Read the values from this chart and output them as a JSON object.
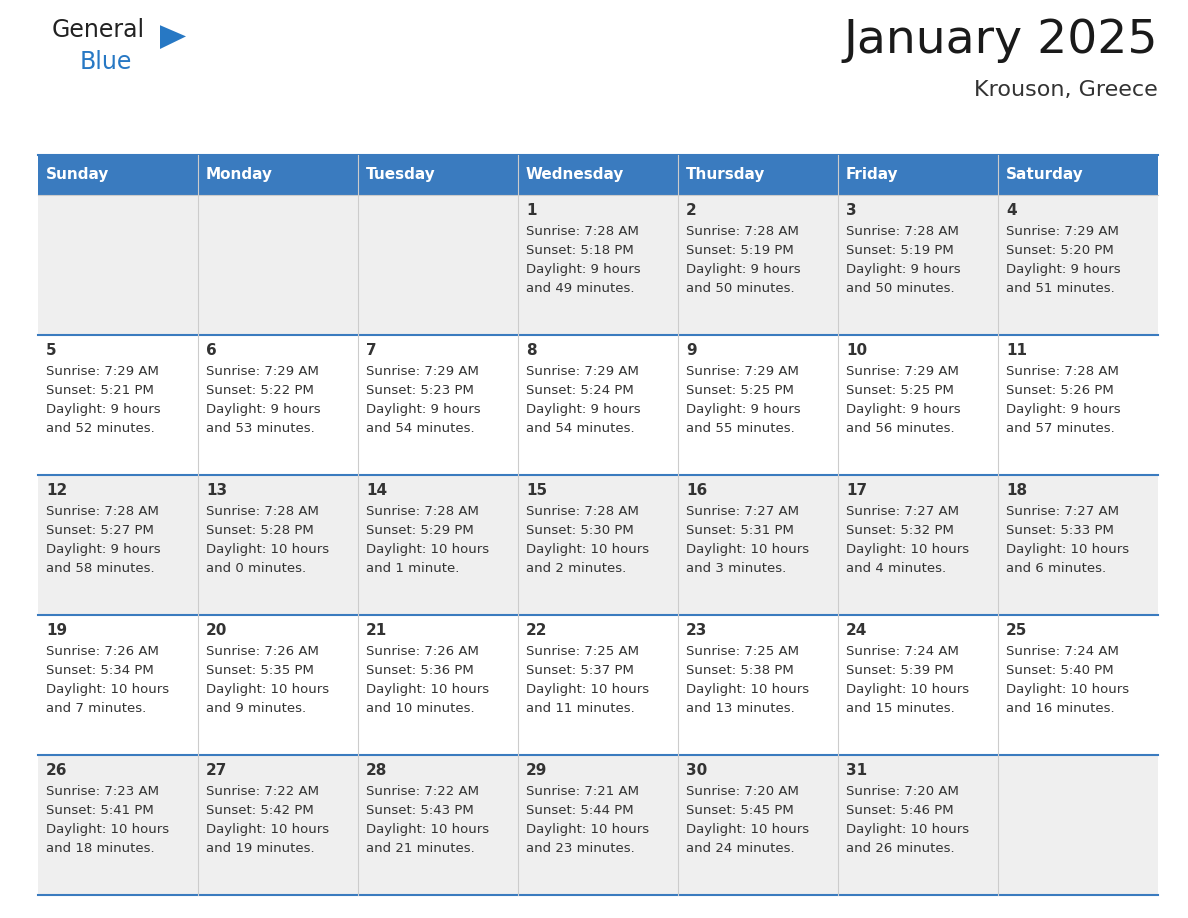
{
  "title": "January 2025",
  "subtitle": "Krouson, Greece",
  "days_of_week": [
    "Sunday",
    "Monday",
    "Tuesday",
    "Wednesday",
    "Thursday",
    "Friday",
    "Saturday"
  ],
  "header_bg_color": "#3A7BBF",
  "header_text_color": "#FFFFFF",
  "cell_bg_even": "#EFEFEF",
  "cell_bg_odd": "#FFFFFF",
  "row_separator_color": "#3A7BBF",
  "col_separator_color": "#CCCCCC",
  "text_color": "#333333",
  "logo_general_color": "#222222",
  "logo_blue_color": "#2778C4",
  "week_rows": [
    [
      {
        "date": "",
        "sunrise": "",
        "sunset": "",
        "daylight": ""
      },
      {
        "date": "",
        "sunrise": "",
        "sunset": "",
        "daylight": ""
      },
      {
        "date": "",
        "sunrise": "",
        "sunset": "",
        "daylight": ""
      },
      {
        "date": "1",
        "sunrise": "7:28 AM",
        "sunset": "5:18 PM",
        "daylight": "9 hours\nand 49 minutes."
      },
      {
        "date": "2",
        "sunrise": "7:28 AM",
        "sunset": "5:19 PM",
        "daylight": "9 hours\nand 50 minutes."
      },
      {
        "date": "3",
        "sunrise": "7:28 AM",
        "sunset": "5:19 PM",
        "daylight": "9 hours\nand 50 minutes."
      },
      {
        "date": "4",
        "sunrise": "7:29 AM",
        "sunset": "5:20 PM",
        "daylight": "9 hours\nand 51 minutes."
      }
    ],
    [
      {
        "date": "5",
        "sunrise": "7:29 AM",
        "sunset": "5:21 PM",
        "daylight": "9 hours\nand 52 minutes."
      },
      {
        "date": "6",
        "sunrise": "7:29 AM",
        "sunset": "5:22 PM",
        "daylight": "9 hours\nand 53 minutes."
      },
      {
        "date": "7",
        "sunrise": "7:29 AM",
        "sunset": "5:23 PM",
        "daylight": "9 hours\nand 54 minutes."
      },
      {
        "date": "8",
        "sunrise": "7:29 AM",
        "sunset": "5:24 PM",
        "daylight": "9 hours\nand 54 minutes."
      },
      {
        "date": "9",
        "sunrise": "7:29 AM",
        "sunset": "5:25 PM",
        "daylight": "9 hours\nand 55 minutes."
      },
      {
        "date": "10",
        "sunrise": "7:29 AM",
        "sunset": "5:25 PM",
        "daylight": "9 hours\nand 56 minutes."
      },
      {
        "date": "11",
        "sunrise": "7:28 AM",
        "sunset": "5:26 PM",
        "daylight": "9 hours\nand 57 minutes."
      }
    ],
    [
      {
        "date": "12",
        "sunrise": "7:28 AM",
        "sunset": "5:27 PM",
        "daylight": "9 hours\nand 58 minutes."
      },
      {
        "date": "13",
        "sunrise": "7:28 AM",
        "sunset": "5:28 PM",
        "daylight": "10 hours\nand 0 minutes."
      },
      {
        "date": "14",
        "sunrise": "7:28 AM",
        "sunset": "5:29 PM",
        "daylight": "10 hours\nand 1 minute."
      },
      {
        "date": "15",
        "sunrise": "7:28 AM",
        "sunset": "5:30 PM",
        "daylight": "10 hours\nand 2 minutes."
      },
      {
        "date": "16",
        "sunrise": "7:27 AM",
        "sunset": "5:31 PM",
        "daylight": "10 hours\nand 3 minutes."
      },
      {
        "date": "17",
        "sunrise": "7:27 AM",
        "sunset": "5:32 PM",
        "daylight": "10 hours\nand 4 minutes."
      },
      {
        "date": "18",
        "sunrise": "7:27 AM",
        "sunset": "5:33 PM",
        "daylight": "10 hours\nand 6 minutes."
      }
    ],
    [
      {
        "date": "19",
        "sunrise": "7:26 AM",
        "sunset": "5:34 PM",
        "daylight": "10 hours\nand 7 minutes."
      },
      {
        "date": "20",
        "sunrise": "7:26 AM",
        "sunset": "5:35 PM",
        "daylight": "10 hours\nand 9 minutes."
      },
      {
        "date": "21",
        "sunrise": "7:26 AM",
        "sunset": "5:36 PM",
        "daylight": "10 hours\nand 10 minutes."
      },
      {
        "date": "22",
        "sunrise": "7:25 AM",
        "sunset": "5:37 PM",
        "daylight": "10 hours\nand 11 minutes."
      },
      {
        "date": "23",
        "sunrise": "7:25 AM",
        "sunset": "5:38 PM",
        "daylight": "10 hours\nand 13 minutes."
      },
      {
        "date": "24",
        "sunrise": "7:24 AM",
        "sunset": "5:39 PM",
        "daylight": "10 hours\nand 15 minutes."
      },
      {
        "date": "25",
        "sunrise": "7:24 AM",
        "sunset": "5:40 PM",
        "daylight": "10 hours\nand 16 minutes."
      }
    ],
    [
      {
        "date": "26",
        "sunrise": "7:23 AM",
        "sunset": "5:41 PM",
        "daylight": "10 hours\nand 18 minutes."
      },
      {
        "date": "27",
        "sunrise": "7:22 AM",
        "sunset": "5:42 PM",
        "daylight": "10 hours\nand 19 minutes."
      },
      {
        "date": "28",
        "sunrise": "7:22 AM",
        "sunset": "5:43 PM",
        "daylight": "10 hours\nand 21 minutes."
      },
      {
        "date": "29",
        "sunrise": "7:21 AM",
        "sunset": "5:44 PM",
        "daylight": "10 hours\nand 23 minutes."
      },
      {
        "date": "30",
        "sunrise": "7:20 AM",
        "sunset": "5:45 PM",
        "daylight": "10 hours\nand 24 minutes."
      },
      {
        "date": "31",
        "sunrise": "7:20 AM",
        "sunset": "5:46 PM",
        "daylight": "10 hours\nand 26 minutes."
      },
      {
        "date": "",
        "sunrise": "",
        "sunset": "",
        "daylight": ""
      }
    ]
  ]
}
